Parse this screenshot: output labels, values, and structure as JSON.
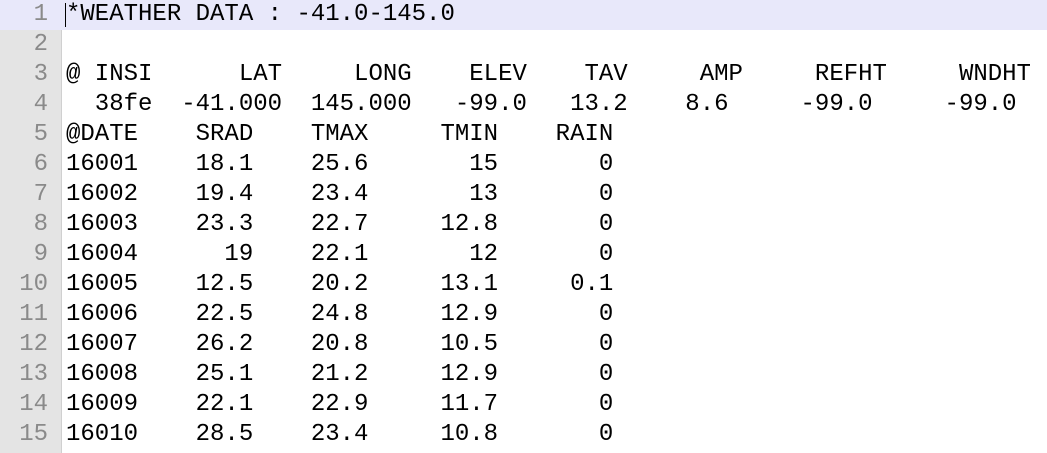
{
  "editor": {
    "current_line": 1,
    "lines": [
      {
        "num": "1",
        "text": "*WEATHER DATA : -41.0-145.0"
      },
      {
        "num": "2",
        "text": ""
      },
      {
        "num": "3",
        "text": "@ INSI      LAT     LONG    ELEV    TAV     AMP     REFHT     WNDHT"
      },
      {
        "num": "4",
        "text": "  38fe  -41.000  145.000   -99.0   13.2    8.6     -99.0     -99.0"
      },
      {
        "num": "5",
        "text": "@DATE    SRAD    TMAX     TMIN    RAIN"
      },
      {
        "num": "6",
        "text": "16001    18.1    25.6       15       0"
      },
      {
        "num": "7",
        "text": "16002    19.4    23.4       13       0"
      },
      {
        "num": "8",
        "text": "16003    23.3    22.7     12.8       0"
      },
      {
        "num": "9",
        "text": "16004      19    22.1       12       0"
      },
      {
        "num": "10",
        "text": "16005    12.5    20.2     13.1     0.1"
      },
      {
        "num": "11",
        "text": "16006    22.5    24.8     12.9       0"
      },
      {
        "num": "12",
        "text": "16007    26.2    20.8     10.5       0"
      },
      {
        "num": "13",
        "text": "16008    25.1    21.2     12.9       0"
      },
      {
        "num": "14",
        "text": "16009    22.1    22.9     11.7       0"
      },
      {
        "num": "15",
        "text": "16010    28.5    23.4     10.8       0"
      }
    ]
  }
}
